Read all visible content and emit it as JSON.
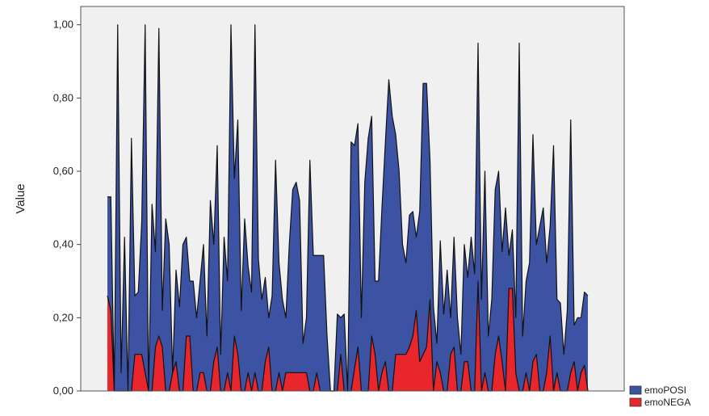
{
  "chart_data": {
    "type": "area",
    "stacked": true,
    "title": "",
    "xlabel": "",
    "ylabel": "Value",
    "ylim": [
      0,
      1.05
    ],
    "yticks": [
      0,
      0.2,
      0.4,
      0.6,
      0.8,
      1.0
    ],
    "ytick_labels": [
      "0,00",
      "0,20",
      "0,40",
      "0,60",
      "0,80",
      "1,00"
    ],
    "grid": false,
    "plot_background": "#f0f0f0",
    "legend": {
      "position": "bottom-right"
    },
    "series": [
      {
        "name": "emoNEGA",
        "color": "#e8262b",
        "values": [
          0.26,
          0.22,
          0,
          0,
          0,
          0,
          0,
          0,
          0.1,
          0.1,
          0.1,
          0.05,
          0,
          0,
          0.12,
          0.15,
          0.12,
          0,
          0,
          0.05,
          0.08,
          0,
          0,
          0.15,
          0.15,
          0,
          0,
          0.05,
          0.05,
          0,
          0,
          0.08,
          0.12,
          0,
          0,
          0.05,
          0,
          0.15,
          0.1,
          0,
          0,
          0.05,
          0,
          0.05,
          0,
          0,
          0.08,
          0.12,
          0,
          0,
          0.05,
          0,
          0.05,
          0.05,
          0.05,
          0.05,
          0.05,
          0.05,
          0.05,
          0,
          0,
          0.05,
          0,
          0,
          0,
          0,
          0,
          0,
          0.1,
          0,
          0,
          0,
          0.06,
          0.12,
          0,
          0,
          0,
          0.15,
          0.1,
          0,
          0.05,
          0.08,
          0,
          0,
          0.1,
          0.1,
          0.1,
          0.1,
          0.12,
          0.15,
          0.22,
          0.08,
          0.1,
          0.12,
          0.25,
          0,
          0.08,
          0.05,
          0,
          0,
          0.1,
          0.12,
          0,
          0,
          0.08,
          0.08,
          0,
          0,
          0.3,
          0,
          0.05,
          0,
          0,
          0.1,
          0.15,
          0.08,
          0,
          0.28,
          0.28,
          0.05,
          0,
          0,
          0.05,
          0,
          0.08,
          0.1,
          0,
          0,
          0.05,
          0.15,
          0,
          0.05,
          0,
          0,
          0,
          0.05,
          0.08,
          0,
          0.05,
          0.07,
          0
        ]
      },
      {
        "name": "emoPOSI",
        "color": "#3c53a4",
        "values": [
          0.27,
          0.31,
          0,
          1.0,
          0.05,
          0.42,
          0,
          0.69,
          0.16,
          0.17,
          0.36,
          0.95,
          0,
          0.51,
          0.26,
          0.84,
          0.1,
          0.47,
          0.4,
          0,
          0.25,
          0.23,
          0.4,
          0.27,
          0.15,
          0.3,
          0.2,
          0.25,
          0.35,
          0.15,
          0.52,
          0.32,
          0.55,
          0.1,
          0.42,
          0.25,
          1.0,
          0.43,
          0.64,
          0.22,
          0.47,
          0.29,
          0.27,
          0.95,
          0.36,
          0.25,
          0.23,
          0.08,
          0.26,
          0.63,
          0.3,
          0.25,
          0.15,
          0.35,
          0.5,
          0.52,
          0.47,
          0.08,
          0.15,
          0.63,
          0.37,
          0.32,
          0.37,
          0.37,
          0.15,
          0,
          0,
          0.21,
          0.1,
          0.21,
          0,
          0.68,
          0.61,
          0.61,
          0.2,
          0.57,
          0.69,
          0.6,
          0.2,
          0.3,
          0.45,
          0.6,
          0.85,
          0.75,
          0.6,
          0.5,
          0.3,
          0.25,
          0.36,
          0.34,
          0.2,
          0.41,
          0.74,
          0.72,
          0.38,
          0.23,
          0.05,
          0.36,
          0.21,
          0.33,
          0.1,
          0.3,
          0.2,
          0.1,
          0.32,
          0.23,
          0.42,
          0.32,
          0.65,
          0.25,
          0.55,
          0.15,
          0.25,
          0.45,
          0.45,
          0.3,
          0.5,
          0.09,
          0.16,
          0.15,
          0.95,
          0.15,
          0.25,
          0.35,
          0.62,
          0.3,
          0.45,
          0.5,
          0.3,
          0.3,
          0.67,
          0.2,
          0.24,
          0.1,
          0.22,
          0.69,
          0.1,
          0.2,
          0.15,
          0.2,
          0.26,
          0.07,
          0.3
        ]
      }
    ]
  }
}
